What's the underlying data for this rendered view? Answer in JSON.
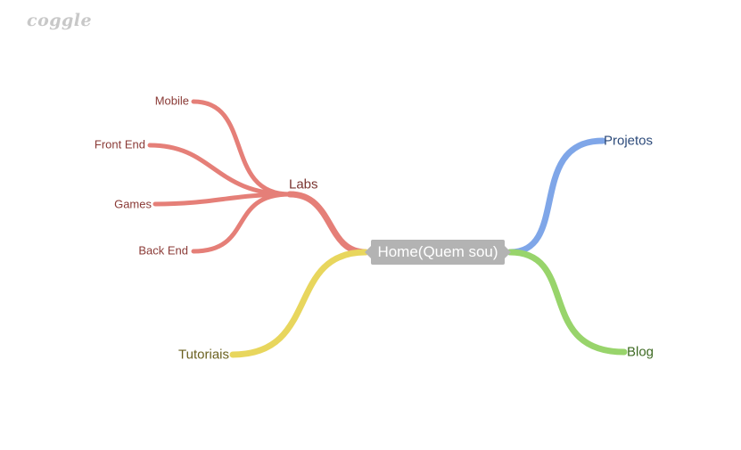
{
  "brand": {
    "logo_text": "coggle"
  },
  "mindmap": {
    "root": {
      "label": "Home(Quem sou)",
      "color": "#b3b3b3"
    },
    "branches": [
      {
        "label": "Labs",
        "color": "#e57f78",
        "children": [
          {
            "label": "Mobile"
          },
          {
            "label": "Front End"
          },
          {
            "label": "Games"
          },
          {
            "label": "Back End"
          }
        ]
      },
      {
        "label": "Tutoriais",
        "color": "#e8d65d",
        "children": []
      },
      {
        "label": "Projetos",
        "color": "#7fa6e8",
        "children": []
      },
      {
        "label": "Blog",
        "color": "#98d46b",
        "children": []
      }
    ]
  },
  "text_colors": {
    "labs": "#7a3430",
    "tutoriais": "#6b6120",
    "projetos": "#2c4a7a",
    "blog": "#3d6a22"
  }
}
